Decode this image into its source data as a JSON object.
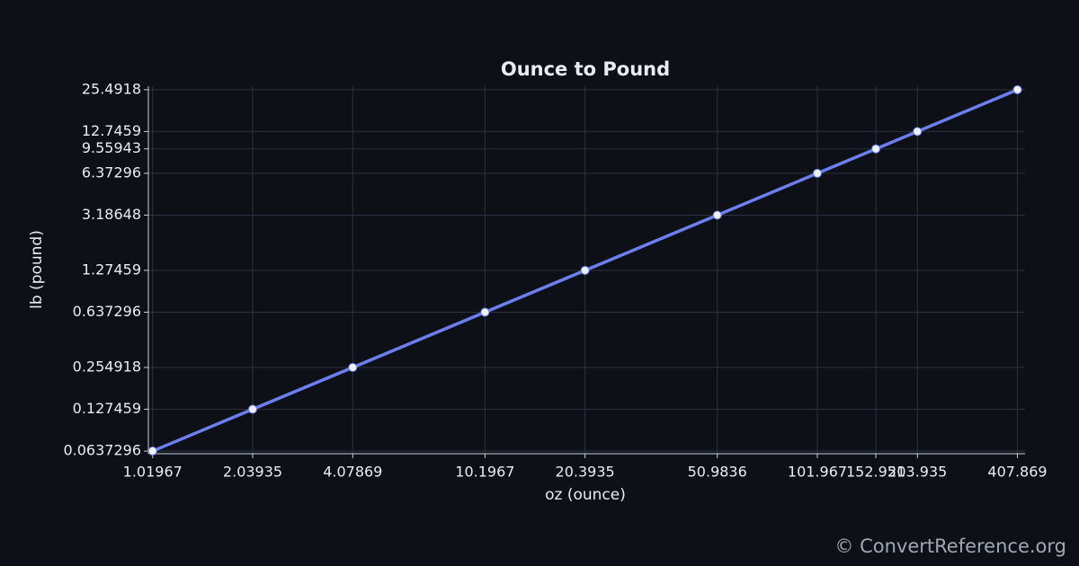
{
  "chart_data": {
    "type": "line",
    "title": "Ounce to Pound",
    "x_label": "oz (ounce)",
    "y_label": "lb (pound)",
    "x": [
      1.01967,
      2.03935,
      4.07869,
      10.1967,
      20.3935,
      50.9836,
      101.967,
      152.951,
      203.935,
      407.869
    ],
    "values": [
      0.0637296,
      0.127459,
      0.254918,
      0.637296,
      1.27459,
      3.18648,
      6.37296,
      9.55943,
      12.7459,
      25.4918
    ],
    "color": "#6c7ff0",
    "x_scale": "log",
    "y_scale": "log",
    "xlim": [
      0.99,
      430
    ],
    "ylim": [
      0.061,
      27
    ],
    "xticks": [
      1.01967,
      2.03935,
      4.07869,
      10.1967,
      20.3935,
      50.9836,
      101.967,
      152.951,
      203.935,
      407.869
    ],
    "yticks": [
      0.0637296,
      0.127459,
      0.254918,
      0.637296,
      1.27459,
      3.18648,
      6.37296,
      9.55943,
      12.7459,
      25.4918
    ],
    "grid": true
  },
  "footer": "© ConvertReference.org"
}
